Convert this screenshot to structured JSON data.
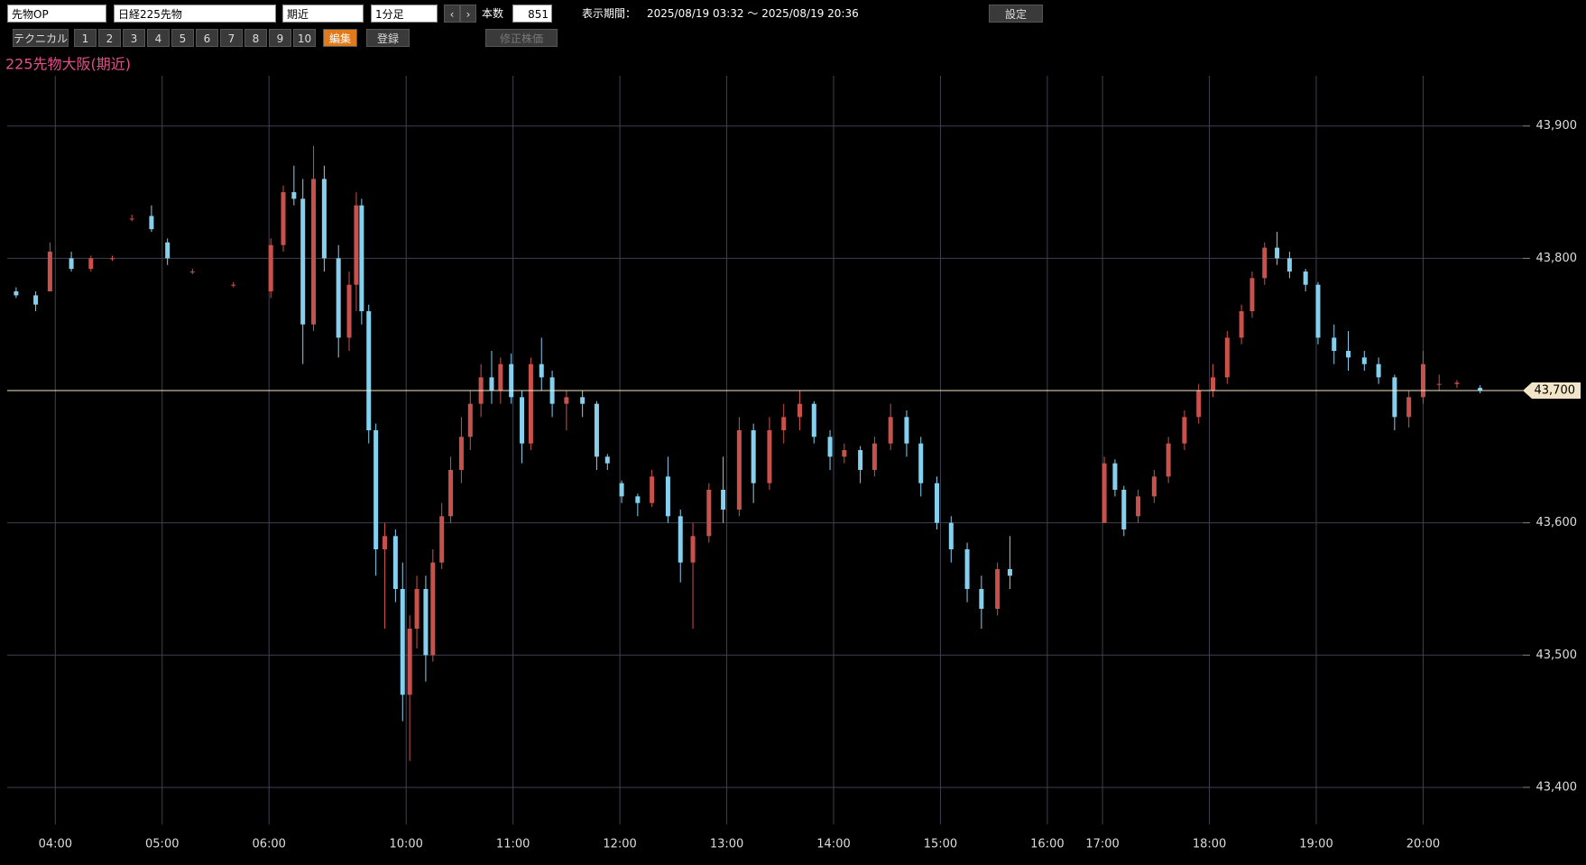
{
  "toolbar": {
    "market": "先物OP",
    "symbol": "日経225先物",
    "contract": "期近",
    "interval": "1分足",
    "count_label": "本数",
    "count": "851",
    "period_label": "表示期間：",
    "period": "2025/08/19 03:32 ～ 2025/08/19 20:36",
    "settings": "設定",
    "technical": "テクニカル",
    "presets": [
      "1",
      "2",
      "3",
      "4",
      "5",
      "6",
      "7",
      "8",
      "9",
      "10"
    ],
    "edit": "編集",
    "register": "登録",
    "adjusted": "修正株価"
  },
  "chart_data": {
    "type": "candlestick",
    "title": "225先物大阪(期近)",
    "x": [
      5,
      16,
      24,
      36,
      47,
      59,
      70,
      81,
      90,
      104,
      127,
      148,
      155,
      161,
      166,
      172,
      178,
      186,
      192,
      196,
      199,
      203,
      207,
      212,
      218,
      222,
      226,
      230,
      235,
      239,
      244,
      249,
      255,
      260,
      266,
      272,
      277,
      283,
      289,
      294,
      300,
      306,
      314,
      323,
      331,
      337,
      345,
      354,
      362,
      371,
      378,
      385,
      394,
      402,
      411,
      419,
      428,
      436,
      445,
      453,
      462,
      470,
      479,
      487,
      496,
      505,
      513,
      522,
      530,
      539,
      547,
      556,
      563,
      616,
      622,
      627,
      635,
      644,
      652,
      661,
      669,
      677,
      685,
      693,
      699,
      706,
      713,
      720,
      729,
      736,
      745,
      753,
      762,
      770,
      779,
      787,
      795,
      804,
      814,
      827
    ],
    "open": [
      43775,
      43772,
      43775,
      43800,
      43792,
      43800,
      43830,
      43832,
      43812,
      43790,
      43780,
      43775,
      43810,
      43850,
      43845,
      43750,
      43860,
      43800,
      43740,
      43780,
      43840,
      43760,
      43670,
      43580,
      43590,
      43550,
      43470,
      43520,
      43550,
      43500,
      43570,
      43605,
      43640,
      43665,
      43690,
      43710,
      43700,
      43720,
      43695,
      43660,
      43720,
      43710,
      43690,
      43695,
      43690,
      43650,
      43630,
      43620,
      43615,
      43635,
      43605,
      43570,
      43590,
      43625,
      43610,
      43670,
      43630,
      43670,
      43680,
      43690,
      43665,
      43650,
      43655,
      43640,
      43660,
      43680,
      43660,
      43630,
      43600,
      43580,
      43550,
      43535,
      43565,
      43600,
      43645,
      43625,
      43605,
      43620,
      43635,
      43660,
      43680,
      43700,
      43710,
      43740,
      43760,
      43785,
      43808,
      43800,
      43790,
      43780,
      43740,
      43730,
      43725,
      43720,
      43710,
      43680,
      43695,
      43705,
      43705,
      43702
    ],
    "high": [
      43778,
      43775,
      43812,
      43805,
      43802,
      43802,
      43833,
      43840,
      43815,
      43792,
      43782,
      43815,
      43855,
      43870,
      43860,
      43885,
      43870,
      43810,
      43790,
      43850,
      43845,
      43765,
      43675,
      43600,
      43595,
      43570,
      43530,
      43560,
      43560,
      43580,
      43615,
      43650,
      43680,
      43700,
      43720,
      43730,
      43725,
      43728,
      43700,
      43725,
      43740,
      43715,
      43700,
      43700,
      43692,
      43652,
      43632,
      43622,
      43640,
      43650,
      43610,
      43600,
      43630,
      43650,
      43680,
      43675,
      43680,
      43690,
      43700,
      43692,
      43670,
      43660,
      43658,
      43665,
      43690,
      43685,
      43665,
      43635,
      43605,
      43585,
      43560,
      43570,
      43590,
      43650,
      43648,
      43628,
      43625,
      43640,
      43665,
      43685,
      43705,
      43720,
      43745,
      43765,
      43790,
      43812,
      43820,
      43805,
      43792,
      43782,
      43750,
      43745,
      43730,
      43725,
      43712,
      43700,
      43730,
      43712,
      43708,
      43704
    ],
    "low": [
      43770,
      43760,
      43775,
      43790,
      43790,
      43798,
      43828,
      43820,
      43795,
      43788,
      43778,
      43770,
      43805,
      43840,
      43720,
      43745,
      43790,
      43725,
      43730,
      43760,
      43750,
      43660,
      43560,
      43520,
      43540,
      43450,
      43420,
      43505,
      43480,
      43495,
      43565,
      43600,
      43630,
      43655,
      43680,
      43690,
      43690,
      43690,
      43645,
      43655,
      43700,
      43680,
      43670,
      43680,
      43640,
      43640,
      43615,
      43605,
      43612,
      43600,
      43555,
      43520,
      43585,
      43600,
      43605,
      43615,
      43625,
      43660,
      43670,
      43660,
      43640,
      43645,
      43630,
      43635,
      43655,
      43650,
      43620,
      43595,
      43570,
      43540,
      43520,
      43530,
      43550,
      43600,
      43620,
      43590,
      43600,
      43615,
      43630,
      43655,
      43675,
      43695,
      43705,
      43735,
      43755,
      43780,
      43795,
      43785,
      43775,
      43735,
      43720,
      43715,
      43715,
      43705,
      43670,
      43672,
      43690,
      43700,
      43702,
      43698
    ],
    "close": [
      43772,
      43765,
      43805,
      43792,
      43800,
      43800,
      43830,
      43822,
      43800,
      43790,
      43780,
      43810,
      43850,
      43845,
      43750,
      43860,
      43800,
      43740,
      43780,
      43840,
      43760,
      43670,
      43580,
      43590,
      43550,
      43470,
      43520,
      43550,
      43500,
      43570,
      43605,
      43640,
      43665,
      43690,
      43710,
      43700,
      43720,
      43695,
      43660,
      43720,
      43710,
      43690,
      43695,
      43690,
      43650,
      43645,
      43620,
      43615,
      43635,
      43605,
      43570,
      43590,
      43625,
      43610,
      43670,
      43630,
      43670,
      43680,
      43690,
      43665,
      43650,
      43655,
      43640,
      43660,
      43680,
      43660,
      43630,
      43600,
      43580,
      43550,
      43535,
      43565,
      43560,
      43645,
      43625,
      43595,
      43620,
      43635,
      43660,
      43680,
      43700,
      43710,
      43740,
      43760,
      43785,
      43808,
      43800,
      43790,
      43780,
      43740,
      43730,
      43725,
      43720,
      43710,
      43680,
      43695,
      43720,
      43705,
      43706,
      43700
    ],
    "xlim": [
      0,
      851
    ],
    "xticks": [
      {
        "value": 27,
        "label": "04:00"
      },
      {
        "value": 87,
        "label": "05:00"
      },
      {
        "value": 147,
        "label": "06:00"
      },
      {
        "value": 224,
        "label": "10:00"
      },
      {
        "value": 284,
        "label": "11:00"
      },
      {
        "value": 344,
        "label": "12:00"
      },
      {
        "value": 404,
        "label": "13:00"
      },
      {
        "value": 464,
        "label": "14:00"
      },
      {
        "value": 524,
        "label": "15:00"
      },
      {
        "value": 584,
        "label": "16:00"
      },
      {
        "value": 615,
        "label": "17:00"
      },
      {
        "value": 675,
        "label": "18:00"
      },
      {
        "value": 735,
        "label": "19:00"
      },
      {
        "value": 795,
        "label": "20:00"
      }
    ],
    "ylim": [
      43372,
      43938
    ],
    "yticks": [
      {
        "value": 43400,
        "label": "43,400"
      },
      {
        "value": 43500,
        "label": "43,500"
      },
      {
        "value": 43600,
        "label": "43,600"
      },
      {
        "value": 43700,
        "label": "43,700"
      },
      {
        "value": 43800,
        "label": "43,800"
      },
      {
        "value": 43900,
        "label": "43,900"
      }
    ],
    "grid": true,
    "up_color": "#c9514c",
    "down_color": "#86d0ef",
    "grid_color": "#3e4150",
    "last_price": {
      "value": 43700,
      "label": "43,700"
    },
    "last_price_color": "#f3e6c8"
  }
}
